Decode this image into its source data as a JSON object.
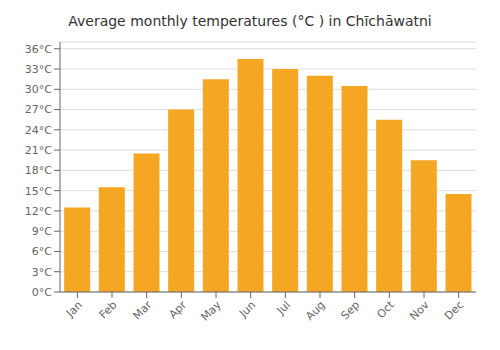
{
  "chart_data": {
    "type": "bar",
    "title": "Average monthly temperatures (°C ) in Chīchāwatni",
    "categories": [
      "Jan",
      "Feb",
      "Mar",
      "Apr",
      "May",
      "Jun",
      "Jul",
      "Aug",
      "Sep",
      "Oct",
      "Nov",
      "Dec"
    ],
    "values": [
      12.5,
      15.5,
      20.5,
      27.0,
      31.5,
      34.5,
      33.0,
      32.0,
      30.5,
      25.5,
      19.5,
      14.5
    ],
    "color": "#F5A623",
    "ylim": [
      0,
      37
    ],
    "yticks": [
      {
        "value": 0,
        "label": "0°C"
      },
      {
        "value": 3,
        "label": "3°C"
      },
      {
        "value": 6,
        "label": "6°C"
      },
      {
        "value": 9,
        "label": "9°C"
      },
      {
        "value": 12,
        "label": "12°C"
      },
      {
        "value": 15,
        "label": "15°C"
      },
      {
        "value": 18,
        "label": "18°C"
      },
      {
        "value": 21,
        "label": "21°C"
      },
      {
        "value": 24,
        "label": "24°C"
      },
      {
        "value": 27,
        "label": "27°C"
      },
      {
        "value": 30,
        "label": "30°C"
      },
      {
        "value": 33,
        "label": "33°C"
      },
      {
        "value": 36,
        "label": "36°C"
      }
    ],
    "grid": true
  }
}
